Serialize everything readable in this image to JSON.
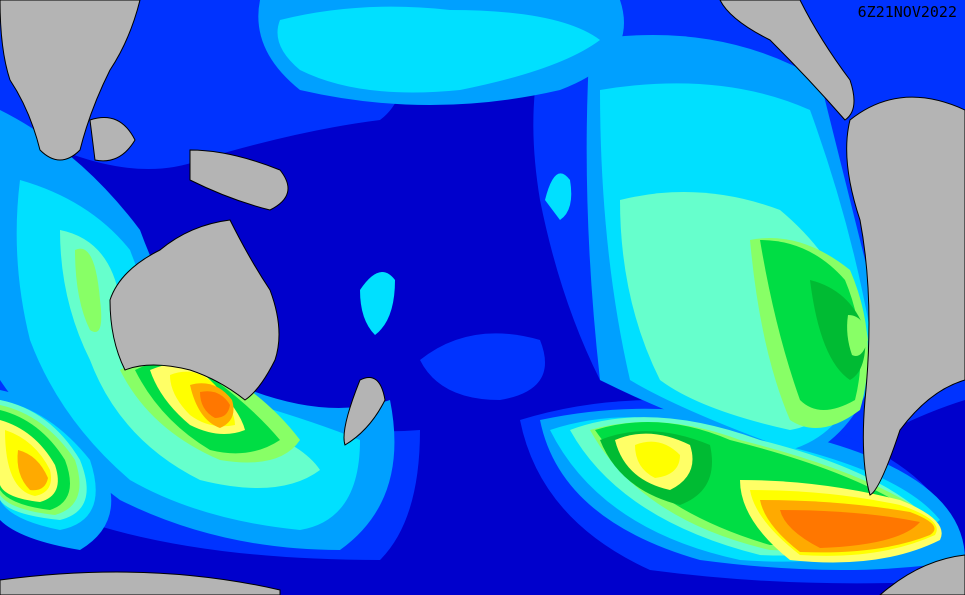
{
  "map": {
    "timestamp": "6Z21NOV2022",
    "colors": {
      "ocean_deep": "#0000cc",
      "level1": "#0033ff",
      "level2": "#00a0ff",
      "level3": "#00e0ff",
      "level4": "#66ffcc",
      "level5": "#88ff66",
      "level6": "#00dd44",
      "level7": "#00bb33",
      "level8": "#ffff66",
      "level9": "#ffff00",
      "level10": "#ffaa00",
      "level11": "#ff7700",
      "land": "#b4b4b4"
    }
  }
}
